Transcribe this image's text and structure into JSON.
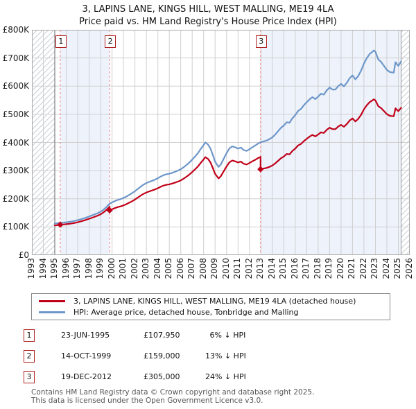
{
  "title": {
    "line1": "3, LAPINS LANE, KINGS HILL, WEST MALLING, ME19 4LA",
    "line2": "Price paid vs. HM Land Registry's House Price Index (HPI)"
  },
  "chart_data": {
    "type": "line",
    "x_axis": {
      "min": 1993,
      "max": 2026,
      "years": [
        1993,
        1994,
        1995,
        1996,
        1997,
        1998,
        1999,
        2000,
        2001,
        2002,
        2003,
        2004,
        2005,
        2006,
        2007,
        2008,
        2009,
        2010,
        2011,
        2012,
        2013,
        2014,
        2015,
        2016,
        2017,
        2018,
        2019,
        2020,
        2021,
        2022,
        2023,
        2024,
        2025,
        2026
      ]
    },
    "y_axis": {
      "min_k": 0,
      "max_k": 800,
      "ticks": [
        {
          "v": 0,
          "label": "£0"
        },
        {
          "v": 100,
          "label": "£100K"
        },
        {
          "v": 200,
          "label": "£200K"
        },
        {
          "v": 300,
          "label": "£300K"
        },
        {
          "v": 400,
          "label": "£400K"
        },
        {
          "v": 500,
          "label": "£500K"
        },
        {
          "v": 600,
          "label": "£600K"
        },
        {
          "v": 700,
          "label": "£700K"
        },
        {
          "v": 800,
          "label": "£800K"
        }
      ]
    },
    "data_start_year": 1995.0,
    "data_end_year": 2025.25,
    "hpi_points": [
      [
        1995.0,
        112
      ],
      [
        1995.25,
        113.5
      ],
      [
        1995.5,
        114.8
      ],
      [
        1995.75,
        115.5
      ],
      [
        1996.0,
        116.5
      ],
      [
        1996.25,
        118
      ],
      [
        1996.5,
        119.5
      ],
      [
        1996.75,
        121.5
      ],
      [
        1997.0,
        124
      ],
      [
        1997.25,
        127
      ],
      [
        1997.5,
        130
      ],
      [
        1997.75,
        133.5
      ],
      [
        1998.0,
        137
      ],
      [
        1998.25,
        141
      ],
      [
        1998.5,
        145
      ],
      [
        1998.75,
        149
      ],
      [
        1999.0,
        154
      ],
      [
        1999.25,
        161
      ],
      [
        1999.5,
        170
      ],
      [
        1999.79,
        183
      ],
      [
        2000.0,
        187
      ],
      [
        2000.25,
        192
      ],
      [
        2000.5,
        196
      ],
      [
        2000.75,
        199
      ],
      [
        2001.0,
        203
      ],
      [
        2001.25,
        208
      ],
      [
        2001.5,
        214
      ],
      [
        2001.75,
        220
      ],
      [
        2002.0,
        227
      ],
      [
        2002.25,
        235
      ],
      [
        2002.5,
        243
      ],
      [
        2002.75,
        250
      ],
      [
        2003.0,
        256
      ],
      [
        2003.25,
        260
      ],
      [
        2003.5,
        264
      ],
      [
        2003.75,
        268
      ],
      [
        2004.0,
        273
      ],
      [
        2004.25,
        279
      ],
      [
        2004.5,
        284
      ],
      [
        2004.75,
        287
      ],
      [
        2005.0,
        289
      ],
      [
        2005.25,
        292
      ],
      [
        2005.5,
        296
      ],
      [
        2005.75,
        300
      ],
      [
        2006.0,
        305
      ],
      [
        2006.25,
        312
      ],
      [
        2006.5,
        320
      ],
      [
        2006.75,
        329
      ],
      [
        2007.0,
        339
      ],
      [
        2007.25,
        350
      ],
      [
        2007.5,
        362
      ],
      [
        2007.75,
        377
      ],
      [
        2008.0,
        391
      ],
      [
        2008.15,
        400
      ],
      [
        2008.4,
        392
      ],
      [
        2008.6,
        378
      ],
      [
        2008.8,
        356
      ],
      [
        2009.0,
        332
      ],
      [
        2009.3,
        313
      ],
      [
        2009.5,
        322
      ],
      [
        2009.75,
        342
      ],
      [
        2010.0,
        362
      ],
      [
        2010.25,
        379
      ],
      [
        2010.5,
        386
      ],
      [
        2010.75,
        383
      ],
      [
        2011.0,
        378
      ],
      [
        2011.25,
        382
      ],
      [
        2011.5,
        373
      ],
      [
        2011.75,
        370
      ],
      [
        2012.0,
        376
      ],
      [
        2012.25,
        383
      ],
      [
        2012.5,
        389
      ],
      [
        2012.75,
        396
      ],
      [
        2012.97,
        401
      ],
      [
        2013.25,
        404
      ],
      [
        2013.5,
        407
      ],
      [
        2013.75,
        412
      ],
      [
        2014.0,
        418
      ],
      [
        2014.25,
        428
      ],
      [
        2014.5,
        440
      ],
      [
        2014.75,
        452
      ],
      [
        2015.0,
        460
      ],
      [
        2015.25,
        472
      ],
      [
        2015.5,
        470
      ],
      [
        2015.75,
        486
      ],
      [
        2016.0,
        497
      ],
      [
        2016.25,
        512
      ],
      [
        2016.5,
        519
      ],
      [
        2016.75,
        532
      ],
      [
        2017.0,
        543
      ],
      [
        2017.25,
        553
      ],
      [
        2017.5,
        561
      ],
      [
        2017.75,
        554
      ],
      [
        2018.0,
        563
      ],
      [
        2018.25,
        573
      ],
      [
        2018.5,
        570
      ],
      [
        2018.75,
        585
      ],
      [
        2019.0,
        595
      ],
      [
        2019.25,
        588
      ],
      [
        2019.5,
        588
      ],
      [
        2019.75,
        600
      ],
      [
        2020.0,
        608
      ],
      [
        2020.25,
        599
      ],
      [
        2020.5,
        612
      ],
      [
        2020.75,
        628
      ],
      [
        2021.0,
        638
      ],
      [
        2021.25,
        624
      ],
      [
        2021.5,
        636
      ],
      [
        2021.75,
        655
      ],
      [
        2022.0,
        680
      ],
      [
        2022.25,
        700
      ],
      [
        2022.5,
        714
      ],
      [
        2022.87,
        727
      ],
      [
        2023.0,
        722
      ],
      [
        2023.25,
        695
      ],
      [
        2023.5,
        686
      ],
      [
        2023.75,
        672
      ],
      [
        2024.0,
        658
      ],
      [
        2024.25,
        650
      ],
      [
        2024.6,
        648
      ],
      [
        2024.75,
        685
      ],
      [
        2025.0,
        672
      ],
      [
        2025.25,
        688
      ]
    ],
    "purchases": [
      {
        "num": "1",
        "date": "23-JUN-1995",
        "year_decimal": 1995.477,
        "price": 107950,
        "price_label": "£107,950",
        "pct": "6%",
        "pct_suffix": "↓ HPI"
      },
      {
        "num": "2",
        "date": "14-OCT-1999",
        "year_decimal": 1999.786,
        "price": 159000,
        "price_label": "£159,000",
        "pct": "13%",
        "pct_suffix": "↓ HPI"
      },
      {
        "num": "3",
        "date": "19-DEC-2012",
        "year_decimal": 2012.967,
        "price": 305000,
        "price_label": "£305,000",
        "pct": "24%",
        "pct_suffix": "↓ HPI"
      }
    ],
    "legend": [
      {
        "label": "3, LAPINS LANE, KINGS HILL, WEST MALLING, ME19 4LA (detached house)",
        "series": "property"
      },
      {
        "label": "HPI: Average price, detached house, Tonbridge and Malling",
        "series": "hpi"
      }
    ],
    "colors": {
      "property": "#c00018",
      "hpi": "#6d96c9",
      "band": "#edf2fb",
      "dashed": "#ef9595",
      "badge_border": "#b02020",
      "grid": "#cfcfcf",
      "plot_border": "#aaaaaa",
      "hatch_line": "#c9cdd4",
      "data_edge": "#666666"
    }
  },
  "footer": {
    "line1": "Contains HM Land Registry data © Crown copyright and database right 2025.",
    "line2": "This data is licensed under the Open Government Licence v3.0."
  }
}
